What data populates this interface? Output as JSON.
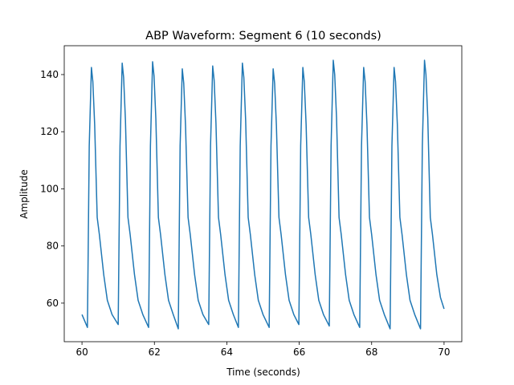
{
  "chart_data": {
    "type": "line",
    "title": "ABP Waveform: Segment 6 (10 seconds)",
    "xlabel": "Time (seconds)",
    "ylabel": "Amplitude",
    "xlim": [
      59.51,
      70.49
    ],
    "ylim": [
      46.5,
      150.1
    ],
    "xticks": [
      60,
      62,
      64,
      66,
      68,
      70
    ],
    "yticks": [
      60,
      80,
      100,
      120,
      140
    ],
    "series": [
      {
        "name": "ABP",
        "color": "#1f77b4",
        "x": [
          60.0,
          60.1,
          60.15,
          60.2,
          60.26,
          60.3,
          60.35,
          60.42,
          60.48,
          60.6,
          60.7,
          60.83,
          61.0,
          61.05,
          61.11,
          61.15,
          61.2,
          61.27,
          61.33,
          61.45,
          61.55,
          61.68,
          61.84,
          61.89,
          61.95,
          61.99,
          62.04,
          62.11,
          62.17,
          62.29,
          62.39,
          62.52,
          62.66,
          62.71,
          62.77,
          62.81,
          62.86,
          62.93,
          62.99,
          63.11,
          63.21,
          63.34,
          63.5,
          63.55,
          63.61,
          63.65,
          63.7,
          63.77,
          63.83,
          63.95,
          64.05,
          64.18,
          64.32,
          64.37,
          64.43,
          64.47,
          64.52,
          64.59,
          64.65,
          64.77,
          64.87,
          65.0,
          65.17,
          65.22,
          65.28,
          65.32,
          65.37,
          65.44,
          65.5,
          65.62,
          65.72,
          65.85,
          65.99,
          66.04,
          66.1,
          66.14,
          66.19,
          66.26,
          66.32,
          66.44,
          66.54,
          66.67,
          66.83,
          66.88,
          66.94,
          66.98,
          67.03,
          67.1,
          67.16,
          67.28,
          67.38,
          67.51,
          67.67,
          67.72,
          67.78,
          67.82,
          67.87,
          67.94,
          68.0,
          68.12,
          68.22,
          68.35,
          68.51,
          68.56,
          68.62,
          68.66,
          68.71,
          68.78,
          68.84,
          68.96,
          69.06,
          69.19,
          69.35,
          69.4,
          69.46,
          69.5,
          69.55,
          69.62,
          69.68,
          69.8,
          69.9,
          70.0
        ],
        "values": [
          56,
          53,
          51.5,
          115,
          142.5,
          137.5,
          122.5,
          90,
          84,
          70,
          61,
          56,
          52.5,
          115,
          144,
          139,
          124,
          90,
          84,
          70,
          61,
          56,
          51.5,
          115,
          144.5,
          139.5,
          124.5,
          90,
          84,
          70,
          61,
          56,
          51,
          115,
          142,
          137,
          122,
          90,
          84,
          70,
          61,
          56,
          52.5,
          115,
          143,
          138,
          123,
          90,
          84,
          70,
          61,
          56,
          51.5,
          115,
          144,
          139,
          124,
          90,
          84,
          70,
          61,
          56,
          51.5,
          115,
          142,
          137,
          122,
          90,
          84,
          70,
          61,
          56,
          52.5,
          115,
          142.5,
          137.5,
          122.5,
          90,
          84,
          70,
          61,
          56,
          52,
          115,
          145,
          140,
          125,
          90,
          84,
          70,
          61,
          56,
          51.5,
          115,
          142.5,
          137.5,
          122.5,
          90,
          84,
          70,
          61,
          56,
          51,
          115,
          142.5,
          137.5,
          122.5,
          90,
          84,
          70,
          61,
          56,
          51,
          115,
          145,
          140,
          125,
          90,
          84,
          70,
          62,
          58
        ]
      }
    ]
  }
}
